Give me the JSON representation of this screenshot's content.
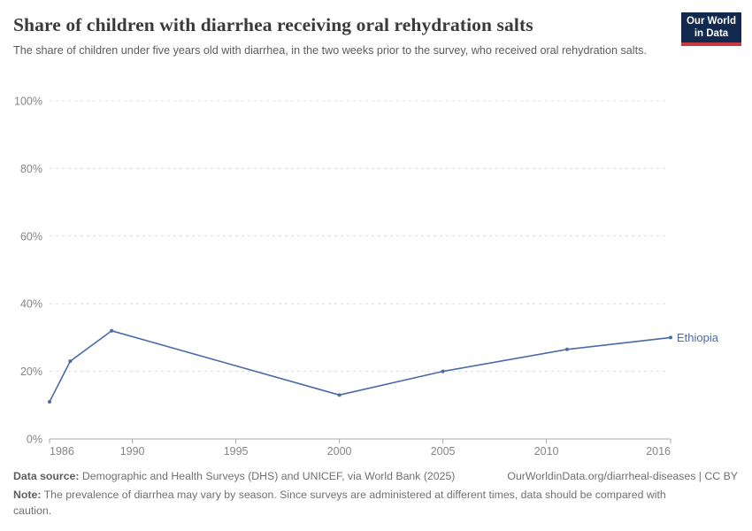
{
  "header": {
    "title": "Share of children with diarrhea receiving oral rehydration salts",
    "subtitle": "The share of children under five years old with diarrhea, in the two weeks prior to the survey, who received oral rehydration salts.",
    "logo": {
      "line1": "Our World",
      "line2": "in Data",
      "bg_color": "#12294F",
      "accent_color": "#C93A3F"
    }
  },
  "chart_data": {
    "type": "line",
    "title": "Share of children with diarrhea receiving oral rehydration salts",
    "xlabel": "",
    "ylabel": "",
    "xlim": [
      1986,
      2016
    ],
    "ylim": [
      0,
      100
    ],
    "x_ticks": [
      1986,
      1990,
      1995,
      2000,
      2005,
      2010,
      2016
    ],
    "y_ticks": [
      0,
      20,
      40,
      60,
      80,
      100
    ],
    "y_tick_suffix": "%",
    "grid": "horizontal-dashed",
    "grid_color": "#dcdcdc",
    "axis_color": "#a8a8a8",
    "legend_position": "end-of-line",
    "series": [
      {
        "name": "Ethiopia",
        "color": "#4A6BA8",
        "points": [
          {
            "x": 1986,
            "y": 11
          },
          {
            "x": 1987,
            "y": 23
          },
          {
            "x": 1989,
            "y": 32
          },
          {
            "x": 2000,
            "y": 13
          },
          {
            "x": 2005,
            "y": 20
          },
          {
            "x": 2011,
            "y": 26.5
          },
          {
            "x": 2016,
            "y": 30
          }
        ]
      }
    ]
  },
  "footer": {
    "source_label": "Data source:",
    "source_text": " Demographic and Health Surveys (DHS) and UNICEF, via World Bank (2025)",
    "link": "OurWorldinData.org/diarrheal-diseases | CC BY",
    "note_label": "Note:",
    "note_text": " The prevalence of diarrhea may vary by season. Since surveys are administered at different times, data should be compared with caution."
  }
}
